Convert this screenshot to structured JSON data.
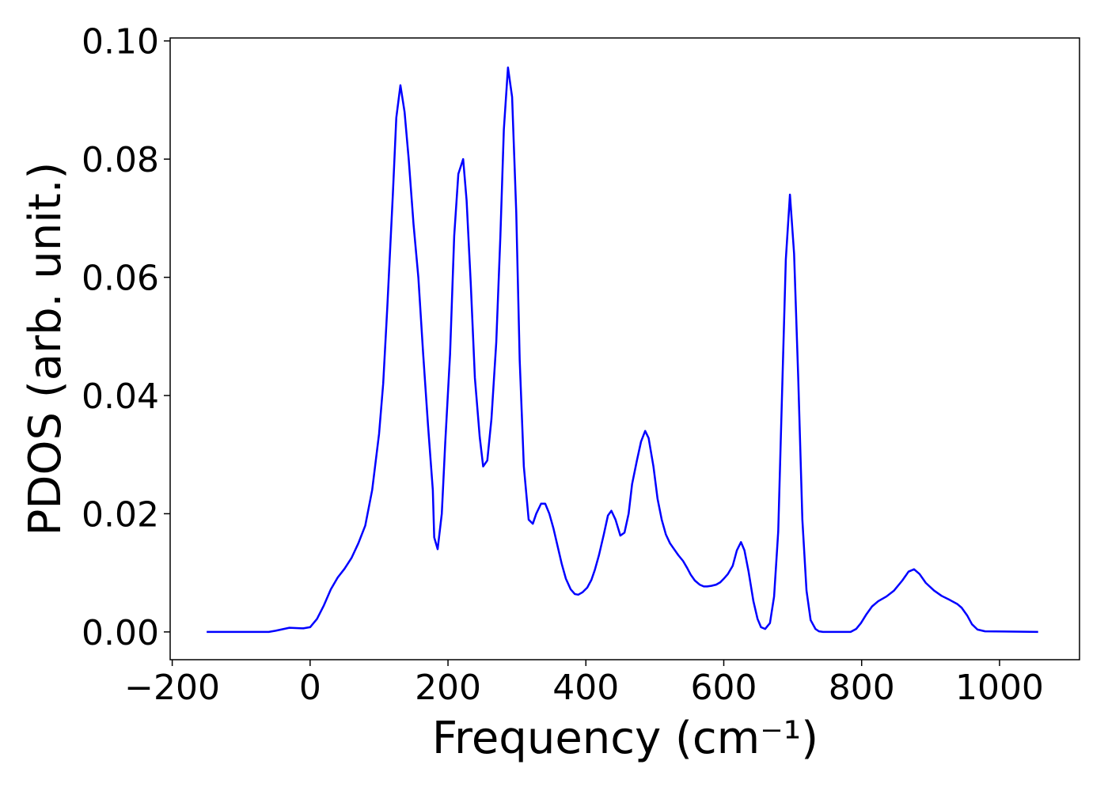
{
  "chart_data": {
    "type": "line",
    "xlabel": "Frequency (cm⁻¹)",
    "ylabel": "PDOS (arb. unit.)",
    "color": "#0000ff",
    "x": [
      -150,
      -60,
      -50,
      -30,
      -10,
      0,
      10,
      20,
      30,
      40,
      50,
      60,
      70,
      80,
      90,
      100,
      106,
      112,
      120,
      125,
      131,
      137,
      143,
      150,
      157,
      164,
      171,
      178,
      180,
      185,
      191,
      196,
      203,
      209,
      215,
      222,
      227,
      233,
      239,
      246,
      251,
      257,
      263,
      270,
      276,
      281,
      287,
      293,
      299,
      304,
      310,
      317,
      323,
      328,
      335,
      341,
      347,
      353,
      359,
      365,
      371,
      378,
      384,
      389,
      395,
      402,
      408,
      413,
      419,
      426,
      432,
      437,
      443,
      450,
      456,
      462,
      467,
      474,
      480,
      486,
      491,
      498,
      504,
      510,
      516,
      522,
      528,
      534,
      541,
      547,
      552,
      558,
      565,
      571,
      576,
      582,
      589,
      595,
      600,
      606,
      613,
      619,
      625,
      630,
      636,
      643,
      649,
      654,
      660,
      667,
      673,
      679,
      684,
      690,
      696,
      702,
      708,
      714,
      720,
      726,
      733,
      738,
      744,
      784,
      792,
      799,
      807,
      815,
      824,
      836,
      847,
      859,
      868,
      876,
      884,
      893,
      905,
      916,
      928,
      939,
      945,
      953,
      960,
      968,
      979,
      1056
    ],
    "values": [
      0,
      0,
      0.0002,
      0.0007,
      0.0006,
      0.0008,
      0.0022,
      0.0045,
      0.0072,
      0.0092,
      0.0107,
      0.0125,
      0.015,
      0.018,
      0.024,
      0.0335,
      0.042,
      0.055,
      0.074,
      0.087,
      0.0925,
      0.088,
      0.08,
      0.069,
      0.06,
      0.047,
      0.035,
      0.024,
      0.016,
      0.014,
      0.02,
      0.032,
      0.047,
      0.067,
      0.0775,
      0.08,
      0.073,
      0.059,
      0.043,
      0.033,
      0.028,
      0.029,
      0.036,
      0.049,
      0.067,
      0.085,
      0.0955,
      0.0905,
      0.071,
      0.046,
      0.028,
      0.019,
      0.0183,
      0.02,
      0.0217,
      0.0217,
      0.02,
      0.0175,
      0.0145,
      0.0115,
      0.009,
      0.0072,
      0.0064,
      0.0063,
      0.0067,
      0.0075,
      0.0088,
      0.0105,
      0.013,
      0.0165,
      0.0197,
      0.0205,
      0.019,
      0.0163,
      0.0168,
      0.02,
      0.025,
      0.029,
      0.0322,
      0.034,
      0.0328,
      0.028,
      0.0225,
      0.019,
      0.0165,
      0.015,
      0.014,
      0.013,
      0.012,
      0.0108,
      0.0097,
      0.0087,
      0.008,
      0.0077,
      0.0077,
      0.0078,
      0.008,
      0.0084,
      0.009,
      0.0098,
      0.0112,
      0.0138,
      0.0152,
      0.0138,
      0.0102,
      0.0052,
      0.0022,
      0.0008,
      0.0005,
      0.0015,
      0.006,
      0.017,
      0.038,
      0.063,
      0.074,
      0.064,
      0.043,
      0.019,
      0.007,
      0.002,
      0.0005,
      0.0001,
      0,
      0,
      0.0005,
      0.0015,
      0.003,
      0.0043,
      0.0052,
      0.006,
      0.007,
      0.0087,
      0.0102,
      0.0106,
      0.0098,
      0.0083,
      0.007,
      0.0061,
      0.0054,
      0.0047,
      0.0041,
      0.0028,
      0.0013,
      0.0004,
      0.0001,
      0
    ],
    "xlim": [
      -203,
      1116
    ],
    "ylim": [
      -0.0047,
      0.1005
    ],
    "xticks": [
      {
        "value": -200,
        "label": "−200"
      },
      0,
      200,
      400,
      600,
      800,
      1000
    ],
    "yticks": [
      {
        "value": 0,
        "label": "0.00"
      },
      {
        "value": 0.02,
        "label": "0.02"
      },
      {
        "value": 0.04,
        "label": "0.04"
      },
      {
        "value": 0.06,
        "label": "0.06"
      },
      {
        "value": 0.08,
        "label": "0.08"
      },
      {
        "value": 0.1,
        "label": "0.10"
      }
    ]
  }
}
